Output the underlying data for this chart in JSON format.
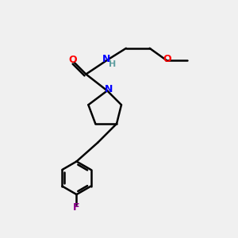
{
  "bg_color": "#f0f0f0",
  "bond_color": "#000000",
  "bond_width": 1.8,
  "atom_colors": {
    "O": "#ff0000",
    "N": "#0000ff",
    "F": "#8b008b",
    "C": "#000000",
    "H": "#5f9ea0"
  },
  "font_size_atom": 9,
  "font_size_small": 8
}
